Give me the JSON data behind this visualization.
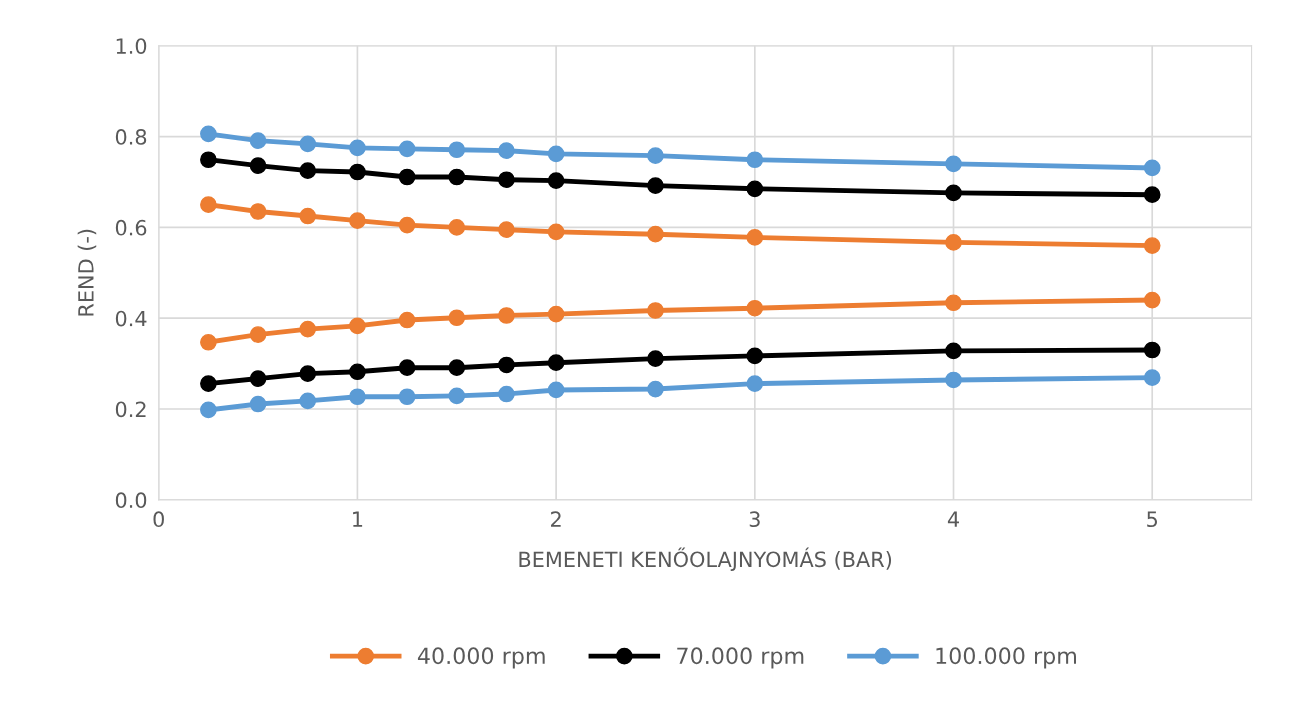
{
  "chart_data": {
    "type": "line",
    "xlabel": "BEMENETI KENŐOLAJNYOMÁS (BAR)",
    "ylabel": "REND (-)",
    "x": [
      0.25,
      0.5,
      0.75,
      1,
      1.25,
      1.5,
      1.75,
      2,
      2.5,
      3,
      4,
      5
    ],
    "series": [
      {
        "name": "40.000 rpm",
        "color": "#ed7d31",
        "values": [
          0.65,
          0.635,
          0.625,
          0.615,
          0.605,
          0.6,
          0.595,
          0.59,
          0.585,
          0.578,
          0.567,
          0.56
        ]
      },
      {
        "color": "#ed7d31",
        "values": [
          0.347,
          0.364,
          0.376,
          0.383,
          0.396,
          0.401,
          0.406,
          0.409,
          0.417,
          0.422,
          0.434,
          0.44
        ]
      },
      {
        "name": "70.000 rpm",
        "color": "#000000",
        "values": [
          0.749,
          0.736,
          0.725,
          0.722,
          0.711,
          0.711,
          0.705,
          0.703,
          0.692,
          0.685,
          0.676,
          0.672
        ]
      },
      {
        "color": "#000000",
        "values": [
          0.256,
          0.267,
          0.278,
          0.282,
          0.291,
          0.291,
          0.297,
          0.302,
          0.311,
          0.317,
          0.328,
          0.33
        ]
      },
      {
        "name": "100.000 rpm",
        "color": "#5b9bd5",
        "values": [
          0.806,
          0.791,
          0.784,
          0.775,
          0.773,
          0.771,
          0.769,
          0.762,
          0.758,
          0.749,
          0.74,
          0.731
        ]
      },
      {
        "color": "#5b9bd5",
        "values": [
          0.198,
          0.211,
          0.218,
          0.227,
          0.227,
          0.229,
          0.233,
          0.242,
          0.244,
          0.256,
          0.264,
          0.269
        ]
      }
    ],
    "xlim": [
      0,
      5.5
    ],
    "xticks": [
      0,
      1,
      2,
      3,
      4,
      5
    ],
    "ylim": [
      0,
      1
    ],
    "yticks": [
      {
        "value": 0,
        "label": "0.0"
      },
      {
        "value": 0.2,
        "label": "0.2"
      },
      {
        "value": 0.4,
        "label": "0.4"
      },
      {
        "value": 0.6,
        "label": "0.6"
      },
      {
        "value": 0.8,
        "label": "0.8"
      },
      {
        "value": 1,
        "label": "1.0"
      }
    ],
    "grid": true,
    "legend": "bottom",
    "marker": "circle",
    "line_style": "solid"
  }
}
